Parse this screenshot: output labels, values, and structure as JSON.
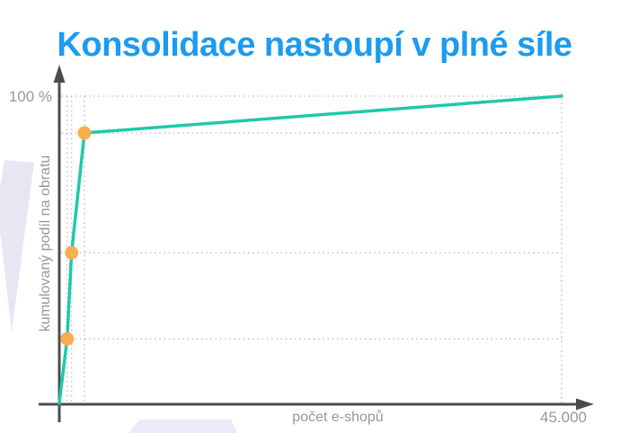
{
  "title": "Konsolidace nastoupí v plné síle",
  "colors": {
    "title_blue": "#1b9cf0",
    "line_teal": "#1ec9ab",
    "point_orange": "#f7ae4e",
    "axis_gray": "#4c4c4f",
    "grid_gray": "#c8c8cc",
    "label_gray": "#97969e",
    "decoration_lavender": "#e9e6f4"
  },
  "chart": {
    "y_axis_label": "kumulovaný podíl na obratu",
    "x_axis_label": "počet e-shopů",
    "y_max_label": "100 %",
    "x_max_label": "45.000"
  },
  "chart_data": {
    "type": "line",
    "title": "Konsolidace nastoupí v plné síle",
    "xlabel": "počet e-shopů",
    "ylabel": "kumulovaný podíl na obratu",
    "xlim": [
      0,
      45000
    ],
    "ylim": [
      0,
      100
    ],
    "x_tick_labels": [
      "45.000"
    ],
    "y_tick_labels": [
      "100 %"
    ],
    "legend": "none",
    "grid": "dotted guide lines at highlighted points and at 100% / 45.000",
    "series": [
      {
        "name": "kumulovaný podíl na obratu",
        "points": [
          {
            "x": 0,
            "y": 0
          },
          {
            "x": 700,
            "y": 21,
            "highlighted": true
          },
          {
            "x": 1100,
            "y": 49,
            "highlighted": true
          },
          {
            "x": 2250,
            "y": 88,
            "highlighted": true
          },
          {
            "x": 45000,
            "y": 100
          }
        ]
      }
    ]
  }
}
